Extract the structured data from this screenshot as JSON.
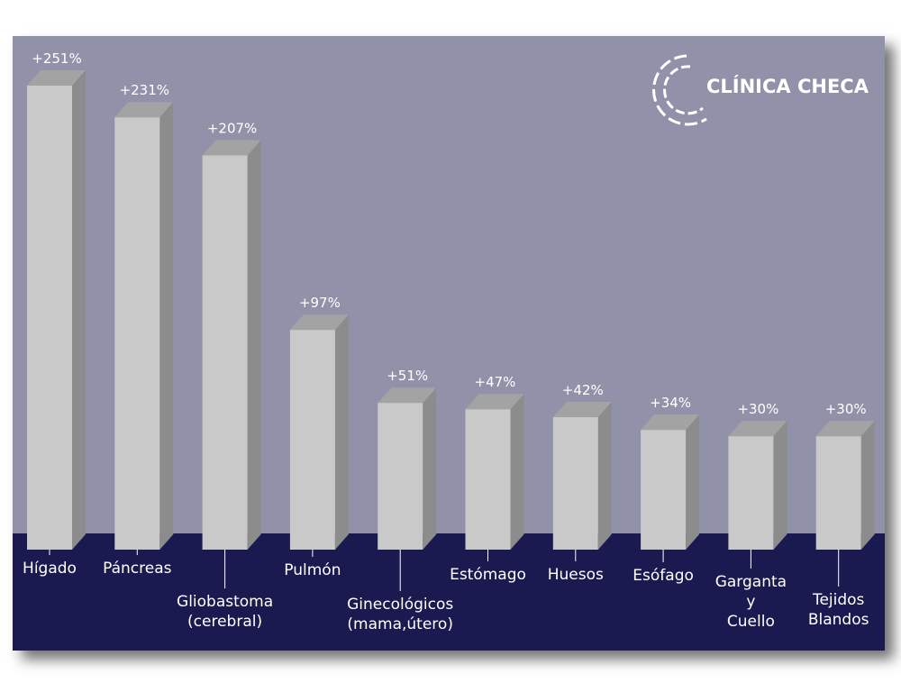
{
  "chart_data": {
    "type": "bar3d",
    "logo": "CLÍNICA CHECA",
    "categories": [
      "Hígado",
      "Páncreas",
      "Gliobastoma\n(cerebral)",
      "Pulmón",
      "Ginecológicos\n(mama,útero)",
      "Estómago",
      "Huesos",
      "Esófago",
      "Garganta\ny\nCuello",
      "Tejidos\nBlandos"
    ],
    "values": [
      251,
      231,
      207,
      97,
      51,
      47,
      42,
      34,
      30,
      30
    ],
    "value_labels": [
      "+251%",
      "+231%",
      "+207%",
      "+97%",
      "+51%",
      "+47%",
      "+42%",
      "+34%",
      "+30%",
      "+30%"
    ],
    "color": "#c9c9c9"
  }
}
